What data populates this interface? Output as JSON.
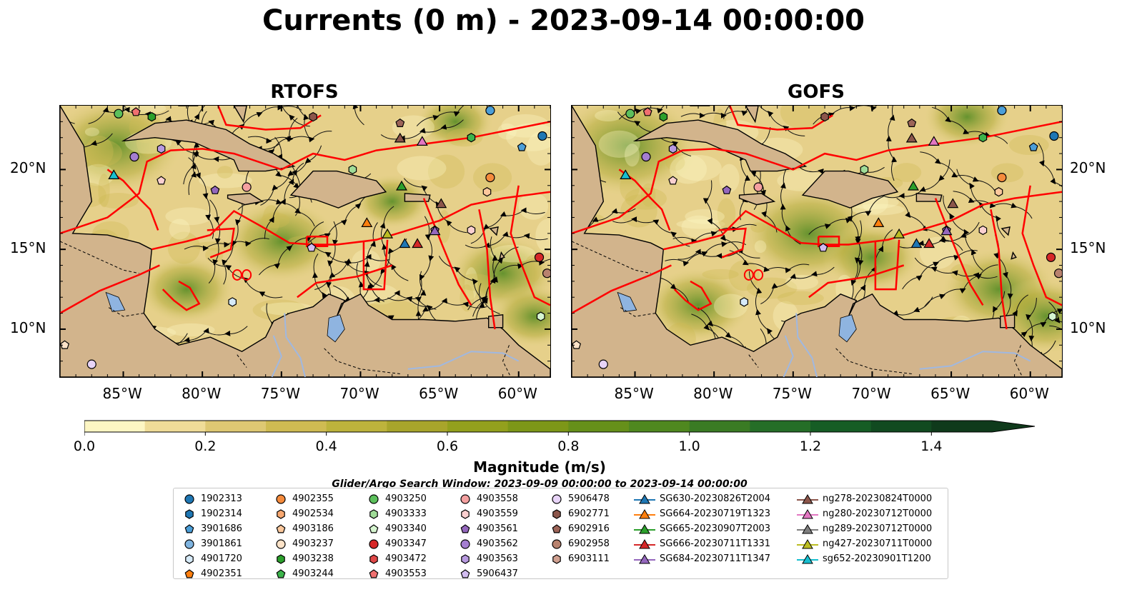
{
  "title": "Currents (0 m) - 2023-09-14 00:00:00",
  "maps": [
    {
      "title": "RTOFS"
    },
    {
      "title": "GOFS"
    }
  ],
  "lon_ticks": [
    "85°W",
    "80°W",
    "75°W",
    "70°W",
    "65°W",
    "60°W"
  ],
  "lat_ticks": [
    "20°N",
    "15°N",
    "10°N"
  ],
  "extent": {
    "lon": [
      -89,
      -58
    ],
    "lat": [
      7,
      24
    ]
  },
  "colorbar": {
    "label": "Magnitude (m/s)",
    "ticks": [
      "0.0",
      "0.2",
      "0.4",
      "0.6",
      "0.8",
      "1.0",
      "1.2",
      "1.4"
    ],
    "range": [
      0,
      1.5
    ],
    "colors": [
      "#fdf6c3",
      "#efdc98",
      "#dec873",
      "#cfbb52",
      "#bdb33c",
      "#a8a52b",
      "#93a01d",
      "#7d9718",
      "#66901a",
      "#4f881f",
      "#3a7b24",
      "#256e27",
      "#165d25",
      "#114a20",
      "#0f3a1b"
    ]
  },
  "search_window": "Glider/Argo Search Window: 2023-09-09 00:00:00 to 2023-09-14 00:00:00",
  "legend": {
    "columns": [
      [
        {
          "label": "1902313",
          "marker": "circle",
          "color": "#1f77b4"
        },
        {
          "label": "1902314",
          "marker": "hexagon",
          "color": "#1f77b4"
        },
        {
          "label": "3901686",
          "marker": "pentagon",
          "color": "#4b9ed8"
        },
        {
          "label": "3901861",
          "marker": "circle",
          "color": "#7fb4e0"
        },
        {
          "label": "4901720",
          "marker": "hexagon",
          "color": "#d6eaf8"
        },
        {
          "label": "4902351",
          "marker": "pentagon",
          "color": "#ff7f0e"
        }
      ],
      [
        {
          "label": "4902355",
          "marker": "circle",
          "color": "#f58b3c"
        },
        {
          "label": "4902534",
          "marker": "hexagon",
          "color": "#f8a870"
        },
        {
          "label": "4903186",
          "marker": "pentagon",
          "color": "#fbc89c"
        },
        {
          "label": "4903237",
          "marker": "circle",
          "color": "#fde3c8"
        },
        {
          "label": "4903238",
          "marker": "hexagon",
          "color": "#2ca02c"
        },
        {
          "label": "4903244",
          "marker": "pentagon",
          "color": "#3cb44b"
        }
      ],
      [
        {
          "label": "4903250",
          "marker": "circle",
          "color": "#5cc05c"
        },
        {
          "label": "4903333",
          "marker": "hexagon",
          "color": "#a0dc98"
        },
        {
          "label": "4903340",
          "marker": "pentagon",
          "color": "#d6f5d0"
        },
        {
          "label": "4903347",
          "marker": "circle",
          "color": "#d62728"
        },
        {
          "label": "4903472",
          "marker": "hexagon",
          "color": "#e04848"
        },
        {
          "label": "4903553",
          "marker": "pentagon",
          "color": "#f07070"
        }
      ],
      [
        {
          "label": "4903558",
          "marker": "circle",
          "color": "#f4a0a0"
        },
        {
          "label": "4903559",
          "marker": "hexagon",
          "color": "#fbd0d0"
        },
        {
          "label": "4903561",
          "marker": "pentagon",
          "color": "#9467bd"
        },
        {
          "label": "4903562",
          "marker": "circle",
          "color": "#a47ed0"
        },
        {
          "label": "4903563",
          "marker": "hexagon",
          "color": "#b89ae0"
        },
        {
          "label": "5906437",
          "marker": "pentagon",
          "color": "#d2bcf0"
        }
      ],
      [
        {
          "label": "5906478",
          "marker": "circle",
          "color": "#e8d4f8"
        },
        {
          "label": "6902771",
          "marker": "hexagon",
          "color": "#8c564b"
        },
        {
          "label": "6902916",
          "marker": "pentagon",
          "color": "#9c6458"
        },
        {
          "label": "6902958",
          "marker": "circle",
          "color": "#b8826e"
        },
        {
          "label": "6903111",
          "marker": "hexagon",
          "color": "#d0a090"
        }
      ],
      [
        {
          "label": "SG630-20230826T2004",
          "marker": "triangle-line",
          "color": "#1f77b4"
        },
        {
          "label": "SG664-20230719T1323",
          "marker": "triangle-line",
          "color": "#ff7f0e"
        },
        {
          "label": "SG665-20230907T2003",
          "marker": "triangle-line",
          "color": "#2ca02c"
        },
        {
          "label": "SG666-20230711T1331",
          "marker": "triangle-line",
          "color": "#d62728"
        },
        {
          "label": "SG684-20230711T1347",
          "marker": "triangle-line",
          "color": "#9467bd"
        }
      ],
      [
        {
          "label": "ng278-20230824T0000",
          "marker": "triangle-line",
          "color": "#8c564b"
        },
        {
          "label": "ng280-20230712T0000",
          "marker": "triangle-line",
          "color": "#e377c2"
        },
        {
          "label": "ng289-20230712T0000",
          "marker": "triangle-line",
          "color": "#7f7f7f"
        },
        {
          "label": "ng427-20230711T0000",
          "marker": "triangle-line",
          "color": "#bcbd22"
        },
        {
          "label": "sg652-20230901T1200",
          "marker": "triangle-line",
          "color": "#17becf"
        }
      ]
    ]
  },
  "colors": {
    "land": "#d2b48c",
    "eez": "#ff0000",
    "lake": "#8fb4e0",
    "river": "#a0b8e0"
  }
}
